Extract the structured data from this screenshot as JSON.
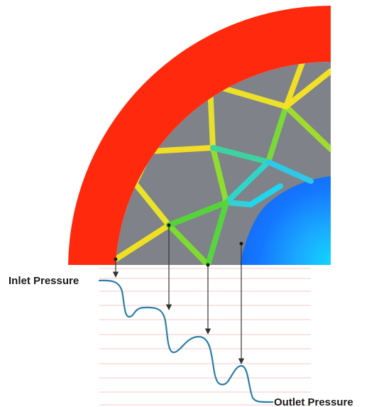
{
  "labels": {
    "inlet": "Inlet Pressure",
    "outlet": "Outlet Pressure"
  },
  "colors": {
    "outer_ring": "#ff2a0d",
    "matrix_gray": "#7f8288",
    "core_blue": "#1477ff",
    "pressure_curve": "#2a7fa8",
    "grid_line": "#f4c9c9",
    "arrow": "#333333",
    "label_text": "#1a1a1a"
  }
}
